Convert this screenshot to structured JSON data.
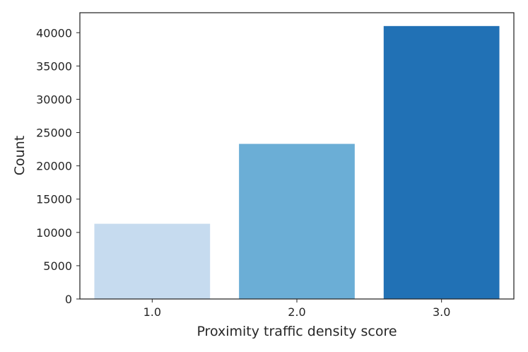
{
  "chart_data": {
    "type": "bar",
    "categories": [
      "1.0",
      "2.0",
      "3.0"
    ],
    "values": [
      11300,
      23300,
      41000
    ],
    "colors": [
      "#c6dbef",
      "#6baed6",
      "#2171b5"
    ],
    "xlabel": "Proximity traffic density score",
    "ylabel": "Count",
    "ylim": [
      0,
      43000
    ],
    "yticks": [
      0,
      5000,
      10000,
      15000,
      20000,
      25000,
      30000,
      35000,
      40000
    ],
    "grid": false,
    "legend": "none"
  }
}
